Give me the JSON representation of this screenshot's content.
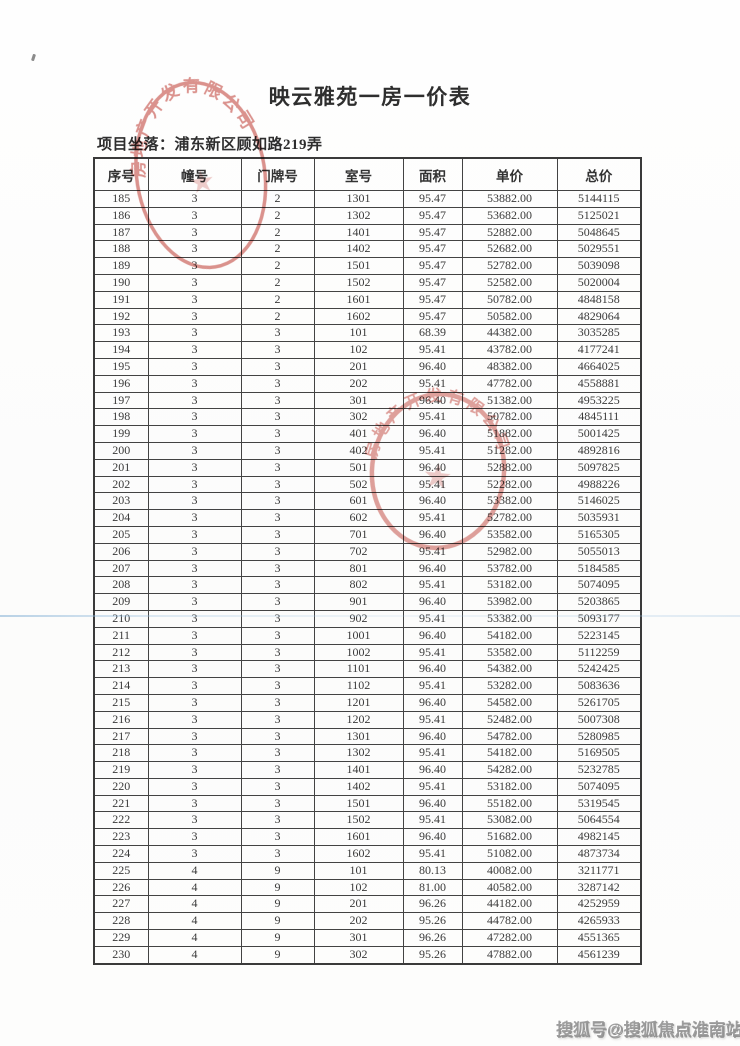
{
  "title": "映云雅苑一房一价表",
  "location": {
    "label": "项目坐落：",
    "value": "浦东新区顾如路219弄"
  },
  "table": {
    "columns": [
      "序号",
      "幢号",
      "门牌号",
      "室号",
      "面积",
      "单价",
      "总价"
    ],
    "rows": [
      [
        "185",
        "3",
        "2",
        "1301",
        "95.47",
        "53882.00",
        "5144115"
      ],
      [
        "186",
        "3",
        "2",
        "1302",
        "95.47",
        "53682.00",
        "5125021"
      ],
      [
        "187",
        "3",
        "2",
        "1401",
        "95.47",
        "52882.00",
        "5048645"
      ],
      [
        "188",
        "3",
        "2",
        "1402",
        "95.47",
        "52682.00",
        "5029551"
      ],
      [
        "189",
        "3",
        "2",
        "1501",
        "95.47",
        "52782.00",
        "5039098"
      ],
      [
        "190",
        "3",
        "2",
        "1502",
        "95.47",
        "52582.00",
        "5020004"
      ],
      [
        "191",
        "3",
        "2",
        "1601",
        "95.47",
        "50782.00",
        "4848158"
      ],
      [
        "192",
        "3",
        "2",
        "1602",
        "95.47",
        "50582.00",
        "4829064"
      ],
      [
        "193",
        "3",
        "3",
        "101",
        "68.39",
        "44382.00",
        "3035285"
      ],
      [
        "194",
        "3",
        "3",
        "102",
        "95.41",
        "43782.00",
        "4177241"
      ],
      [
        "195",
        "3",
        "3",
        "201",
        "96.40",
        "48382.00",
        "4664025"
      ],
      [
        "196",
        "3",
        "3",
        "202",
        "95.41",
        "47782.00",
        "4558881"
      ],
      [
        "197",
        "3",
        "3",
        "301",
        "96.40",
        "51382.00",
        "4953225"
      ],
      [
        "198",
        "3",
        "3",
        "302",
        "95.41",
        "50782.00",
        "4845111"
      ],
      [
        "199",
        "3",
        "3",
        "401",
        "96.40",
        "51882.00",
        "5001425"
      ],
      [
        "200",
        "3",
        "3",
        "402",
        "95.41",
        "51282.00",
        "4892816"
      ],
      [
        "201",
        "3",
        "3",
        "501",
        "96.40",
        "52882.00",
        "5097825"
      ],
      [
        "202",
        "3",
        "3",
        "502",
        "95.41",
        "52282.00",
        "4988226"
      ],
      [
        "203",
        "3",
        "3",
        "601",
        "96.40",
        "53382.00",
        "5146025"
      ],
      [
        "204",
        "3",
        "3",
        "602",
        "95.41",
        "52782.00",
        "5035931"
      ],
      [
        "205",
        "3",
        "3",
        "701",
        "96.40",
        "53582.00",
        "5165305"
      ],
      [
        "206",
        "3",
        "3",
        "702",
        "95.41",
        "52982.00",
        "5055013"
      ],
      [
        "207",
        "3",
        "3",
        "801",
        "96.40",
        "53782.00",
        "5184585"
      ],
      [
        "208",
        "3",
        "3",
        "802",
        "95.41",
        "53182.00",
        "5074095"
      ],
      [
        "209",
        "3",
        "3",
        "901",
        "96.40",
        "53982.00",
        "5203865"
      ],
      [
        "210",
        "3",
        "3",
        "902",
        "95.41",
        "53382.00",
        "5093177"
      ],
      [
        "211",
        "3",
        "3",
        "1001",
        "96.40",
        "54182.00",
        "5223145"
      ],
      [
        "212",
        "3",
        "3",
        "1002",
        "95.41",
        "53582.00",
        "5112259"
      ],
      [
        "213",
        "3",
        "3",
        "1101",
        "96.40",
        "54382.00",
        "5242425"
      ],
      [
        "214",
        "3",
        "3",
        "1102",
        "95.41",
        "53282.00",
        "5083636"
      ],
      [
        "215",
        "3",
        "3",
        "1201",
        "96.40",
        "54582.00",
        "5261705"
      ],
      [
        "216",
        "3",
        "3",
        "1202",
        "95.41",
        "52482.00",
        "5007308"
      ],
      [
        "217",
        "3",
        "3",
        "1301",
        "96.40",
        "54782.00",
        "5280985"
      ],
      [
        "218",
        "3",
        "3",
        "1302",
        "95.41",
        "54182.00",
        "5169505"
      ],
      [
        "219",
        "3",
        "3",
        "1401",
        "96.40",
        "54282.00",
        "5232785"
      ],
      [
        "220",
        "3",
        "3",
        "1402",
        "95.41",
        "53182.00",
        "5074095"
      ],
      [
        "221",
        "3",
        "3",
        "1501",
        "96.40",
        "55182.00",
        "5319545"
      ],
      [
        "222",
        "3",
        "3",
        "1502",
        "95.41",
        "53082.00",
        "5064554"
      ],
      [
        "223",
        "3",
        "3",
        "1601",
        "96.40",
        "51682.00",
        "4982145"
      ],
      [
        "224",
        "3",
        "3",
        "1602",
        "95.41",
        "51082.00",
        "4873734"
      ],
      [
        "225",
        "4",
        "9",
        "101",
        "80.13",
        "40082.00",
        "3211771"
      ],
      [
        "226",
        "4",
        "9",
        "102",
        "81.00",
        "40582.00",
        "3287142"
      ],
      [
        "227",
        "4",
        "9",
        "201",
        "96.26",
        "44182.00",
        "4252959"
      ],
      [
        "228",
        "4",
        "9",
        "202",
        "95.26",
        "44782.00",
        "4265933"
      ],
      [
        "229",
        "4",
        "9",
        "301",
        "96.26",
        "47282.00",
        "4551365"
      ],
      [
        "230",
        "4",
        "9",
        "302",
        "95.26",
        "47882.00",
        "4561239"
      ]
    ]
  },
  "seals": [
    {
      "name": "developer-round-seal-top",
      "arc_text": "房地产开发有限公司",
      "color": "#c2443c"
    },
    {
      "name": "developer-round-seal-middle",
      "arc_text": "房地产开发有限公司",
      "color": "#c2443c"
    }
  ],
  "watermark": "搜狐号@搜狐焦点淮南站",
  "colors": {
    "seal_red": "#c2443c",
    "fold_line_blue": "#96bcd8",
    "paper": "#fdfdfc"
  }
}
